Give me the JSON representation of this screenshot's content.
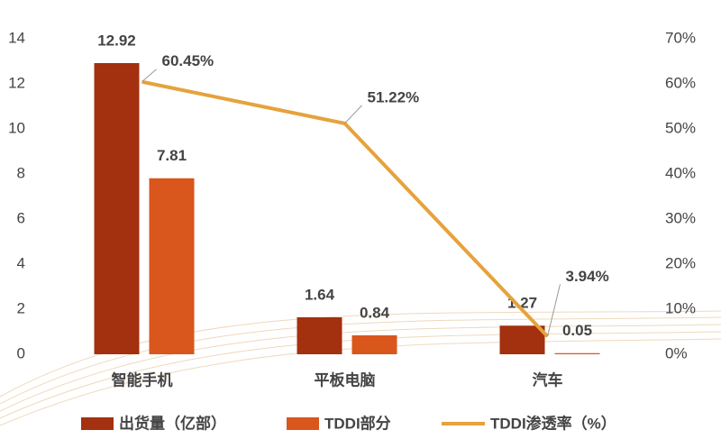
{
  "chart_data": {
    "type": "bar-line",
    "categories": [
      "智能手机",
      "平板电脑",
      "汽车"
    ],
    "series": [
      {
        "name": "出货量（亿部）",
        "color": "#a3300f",
        "values": [
          12.92,
          1.64,
          1.27
        ]
      },
      {
        "name": "TDDI部分",
        "color": "#d9561c",
        "values": [
          7.81,
          0.84,
          0.05
        ]
      },
      {
        "name": "TDDI渗透率（%）",
        "color": "#e6a23c",
        "axis": "y2",
        "values": [
          60.45,
          51.22,
          3.94
        ],
        "value_labels": [
          "60.45%",
          "51.22%",
          "3.94%"
        ],
        "label_color": "#c0141c"
      }
    ],
    "ylim": [
      0,
      14
    ],
    "yticks": [
      0,
      2,
      4,
      6,
      8,
      10,
      12,
      14
    ],
    "y2lim": [
      0,
      70
    ],
    "y2ticks": [
      {
        "value": 0,
        "label": "0%"
      },
      {
        "value": 10,
        "label": "10%"
      },
      {
        "value": 20,
        "label": "20%"
      },
      {
        "value": 30,
        "label": "30%"
      },
      {
        "value": 40,
        "label": "40%"
      },
      {
        "value": 50,
        "label": "50%"
      },
      {
        "value": 60,
        "label": "60%"
      },
      {
        "value": 70,
        "label": "70%"
      }
    ],
    "grid": false
  }
}
